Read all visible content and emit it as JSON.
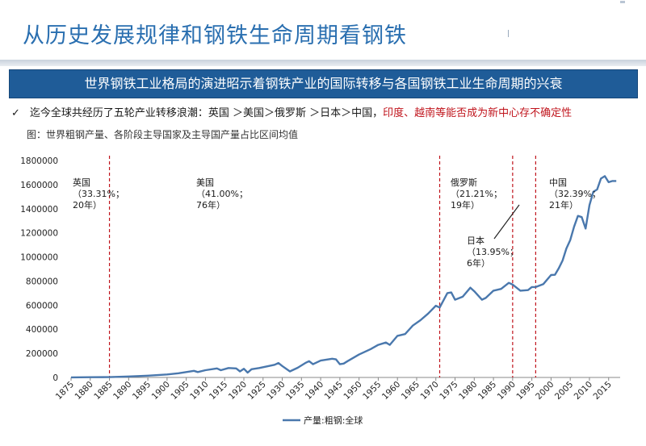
{
  "slide": {
    "title": "从历史发展规律和钢铁生命周期看钢铁",
    "banner": "世界钢铁工业格局的演进昭示着钢铁产业的国际转移与各国钢铁工业生命周期的兴衰",
    "bullet_check": "✓",
    "bullet_text": "迄今全球共经历了五轮产业转移浪潮：英国 ＞美国＞俄罗斯 ＞日本＞中国，",
    "bullet_highlight": "印度、越南等能否成为新中心存不确定性",
    "chart_caption": "图：世界粗钢产量、各阶段主导国家及主导国产量占比区间均值"
  },
  "colors": {
    "title": "#2a6fb0",
    "banner_bg": "#1f5c98",
    "series_line": "#4a78ad",
    "divider": "#c0141c",
    "highlight_text": "#c0141c"
  },
  "chart_data": {
    "type": "line",
    "title": "",
    "xlabel": "",
    "ylabel": "",
    "xlim": [
      1875,
      2018
    ],
    "ylim": [
      0,
      1800000
    ],
    "x_ticks": [
      "1875",
      "1880",
      "1885",
      "1890",
      "1895",
      "1900",
      "1905",
      "1910",
      "1915",
      "1920",
      "1925",
      "1930",
      "1935",
      "1940",
      "1945",
      "1950",
      "1955",
      "1960",
      "1965",
      "1970",
      "1975",
      "1980",
      "1985",
      "1990",
      "1995",
      "2000",
      "2005",
      "2010",
      "2015"
    ],
    "y_ticks": [
      "0",
      "200000",
      "400000",
      "600000",
      "800000",
      "1000000",
      "1200000",
      "1400000",
      "1600000",
      "1800000"
    ],
    "legend": {
      "position": "bottom-center"
    },
    "grid": false,
    "series": [
      {
        "name": "产量:粗钢:全球",
        "x": [
          1875,
          1880,
          1885,
          1890,
          1895,
          1900,
          1903,
          1905,
          1907,
          1908,
          1910,
          1913,
          1914,
          1916,
          1918,
          1919,
          1920,
          1921,
          1922,
          1924,
          1926,
          1928,
          1929,
          1930,
          1932,
          1934,
          1936,
          1937,
          1938,
          1940,
          1942,
          1943,
          1944,
          1945,
          1946,
          1947,
          1950,
          1953,
          1955,
          1957,
          1958,
          1960,
          1962,
          1964,
          1966,
          1968,
          1970,
          1971,
          1973,
          1974,
          1975,
          1977,
          1979,
          1980,
          1982,
          1983,
          1985,
          1987,
          1989,
          1990,
          1992,
          1994,
          1995,
          1996,
          1998,
          2000,
          2001,
          2002,
          2003,
          2004,
          2005,
          2006,
          2007,
          2008,
          2009,
          2010,
          2011,
          2012,
          2013,
          2014,
          2015,
          2016,
          2017
        ],
        "y": [
          1000,
          2000,
          3000,
          8000,
          15000,
          25000,
          35000,
          45000,
          55000,
          45000,
          60000,
          75000,
          60000,
          78000,
          75000,
          50000,
          72000,
          40000,
          68000,
          78000,
          92000,
          105000,
          120000,
          95000,
          50000,
          80000,
          120000,
          135000,
          110000,
          140000,
          150000,
          155000,
          150000,
          110000,
          115000,
          135000,
          190000,
          235000,
          270000,
          290000,
          270000,
          345000,
          360000,
          430000,
          475000,
          530000,
          595000,
          580000,
          700000,
          705000,
          645000,
          670000,
          745000,
          715000,
          645000,
          660000,
          720000,
          735000,
          785000,
          770000,
          720000,
          725000,
          750000,
          750000,
          775000,
          850000,
          852000,
          905000,
          970000,
          1070000,
          1140000,
          1250000,
          1340000,
          1330000,
          1235000,
          1430000,
          1540000,
          1560000,
          1650000,
          1670000,
          1620000,
          1630000,
          1630000
        ]
      }
    ],
    "dividers": [
      1885,
      1971,
      1990,
      1996
    ],
    "annotations": [
      {
        "country": "英国",
        "share": "（33.31%；",
        "years": "20年）"
      },
      {
        "country": "美国",
        "share": "（41.00%；",
        "years": "76年）"
      },
      {
        "country": "俄罗斯",
        "share": "（21.21%；",
        "years": "19年）"
      },
      {
        "country": "日本",
        "share": "（13.95%；",
        "years": "6年）"
      },
      {
        "country": "中国",
        "share": "（32.39%；",
        "years": "21年）"
      }
    ]
  }
}
